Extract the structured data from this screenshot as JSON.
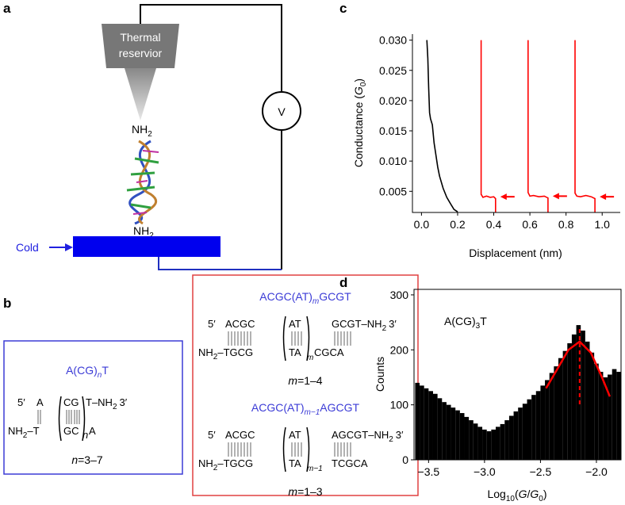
{
  "panel_labels": {
    "a": "a",
    "b": "b",
    "c": "c",
    "d": "d"
  },
  "diagram_a": {
    "reservoir": [
      "Thermal",
      "reservior"
    ],
    "amine_top": [
      "NH",
      "2"
    ],
    "amine_bottom": [
      "NH",
      "2"
    ],
    "voltmeter": "V",
    "cold": "Cold"
  },
  "diagram_b": {
    "blue": {
      "title": [
        "A(CG)",
        "n",
        "T"
      ],
      "top": [
        "5′",
        "A",
        "CG",
        "T–NH",
        "2",
        "3′"
      ],
      "bottom": [
        "NH",
        "2",
        "–T",
        "GC",
        "n",
        "A"
      ],
      "range": [
        "n",
        "=3–7"
      ]
    },
    "red1": {
      "title": [
        "ACGC(AT)",
        "m",
        "GCGT"
      ],
      "top": [
        "5′",
        "ACGC",
        "AT",
        "GCGT–NH",
        "2",
        "3′"
      ],
      "bottom": [
        "NH",
        "2",
        "–TGCG",
        "TA",
        "m",
        "CGCA"
      ],
      "range": [
        "m",
        "=1–4"
      ]
    },
    "red2": {
      "title": [
        "ACGC(AT)",
        "m−1",
        "AGCGT"
      ],
      "top": [
        "5′",
        "ACGC",
        "AT",
        "AGCGT–NH",
        "2",
        "3′"
      ],
      "bottom": [
        "NH",
        "2",
        "–TGCG",
        "TA",
        "m−1",
        "TCGCA"
      ],
      "range": [
        "m",
        "=1–3"
      ]
    }
  },
  "chart_data": [
    {
      "type": "line",
      "x_label": "Displacement (nm)",
      "y_label": [
        "Conductance (",
        "G",
        "0",
        ")"
      ],
      "xlim": [
        -0.05,
        1.1
      ],
      "ylim": [
        0.0015,
        0.031
      ],
      "xticks": [
        {
          "value": 0,
          "label": "0.0"
        },
        0.2,
        0.4,
        0.6,
        0.8,
        {
          "value": 1,
          "label": "1.0"
        }
      ],
      "yticks": [
        0.005,
        {
          "value": 0.01,
          "label": "0.010"
        },
        0.015,
        {
          "value": 0.02,
          "label": "0.020"
        },
        0.025,
        {
          "value": 0.03,
          "label": "0.030"
        }
      ],
      "series": [
        {
          "color": "#000000",
          "x": [
            0.03,
            0.035,
            0.04,
            0.045,
            0.05,
            0.06,
            0.07,
            0.08,
            0.09,
            0.1,
            0.12,
            0.14,
            0.16,
            0.18,
            0.2
          ],
          "values": [
            0.03,
            0.027,
            0.022,
            0.018,
            0.017,
            0.016,
            0.013,
            0.011,
            0.009,
            0.0075,
            0.0055,
            0.004,
            0.003,
            0.002,
            0.0016
          ]
        },
        {
          "color": "#ff0000",
          "x": [
            0.33,
            0.33,
            0.34,
            0.36,
            0.38,
            0.4,
            0.41,
            0.41
          ],
          "values": [
            0.03,
            0.0045,
            0.004,
            0.0042,
            0.004,
            0.0041,
            0.0038,
            0.0015
          ]
        },
        {
          "color": "#ff0000",
          "x": [
            0.59,
            0.59,
            0.6,
            0.62,
            0.65,
            0.68,
            0.7,
            0.7
          ],
          "values": [
            0.03,
            0.0048,
            0.0042,
            0.0043,
            0.0041,
            0.0042,
            0.0039,
            0.0015
          ]
        },
        {
          "color": "#ff0000",
          "x": [
            0.85,
            0.85,
            0.86,
            0.88,
            0.91,
            0.94,
            0.96,
            0.96
          ],
          "values": [
            0.03,
            0.0047,
            0.0042,
            0.0041,
            0.0043,
            0.0041,
            0.0038,
            0.0015
          ]
        }
      ]
    },
    {
      "type": "histogram",
      "x_label": [
        "Log",
        "10",
        "(",
        "G",
        "/",
        "G",
        "0",
        ")"
      ],
      "y_label": "Counts",
      "annotation": [
        "A(CG)",
        "3",
        "T"
      ],
      "xlim": [
        -3.63,
        -1.78
      ],
      "ylim": [
        0,
        310
      ],
      "xticks": [
        {
          "value": -3.5,
          "label": "−3.5"
        },
        {
          "value": -3,
          "label": "−3.0"
        },
        {
          "value": -2.5,
          "label": "−2.5"
        },
        {
          "value": -2,
          "label": "−2.0"
        }
      ],
      "yticks": [
        0,
        100,
        200,
        300
      ],
      "bins": [
        -3.62,
        -3.58,
        -3.54,
        -3.5,
        -3.46,
        -3.42,
        -3.38,
        -3.34,
        -3.3,
        -3.26,
        -3.22,
        -3.18,
        -3.14,
        -3.1,
        -3.06,
        -3.02,
        -2.98,
        -2.94,
        -2.9,
        -2.86,
        -2.82,
        -2.78,
        -2.74,
        -2.7,
        -2.66,
        -2.62,
        -2.58,
        -2.54,
        -2.5,
        -2.46,
        -2.42,
        -2.38,
        -2.34,
        -2.3,
        -2.26,
        -2.22,
        -2.18,
        -2.14,
        -2.1,
        -2.06,
        -2.02,
        -1.98,
        -1.94,
        -1.9,
        -1.86,
        -1.82,
        -1.78
      ],
      "counts": [
        140,
        135,
        130,
        125,
        120,
        112,
        105,
        100,
        95,
        90,
        85,
        78,
        72,
        66,
        60,
        55,
        52,
        55,
        60,
        65,
        72,
        80,
        88,
        95,
        102,
        110,
        118,
        125,
        135,
        145,
        158,
        170,
        185,
        198,
        212,
        228,
        245,
        235,
        215,
        195,
        175,
        160,
        150,
        155,
        165,
        160
      ],
      "color": "#000000",
      "fit": {
        "color": "#ff0000",
        "x": [
          -2.45,
          -2.35,
          -2.25,
          -2.15,
          -2.05,
          -1.95,
          -1.88
        ],
        "values": [
          130,
          165,
          200,
          215,
          195,
          150,
          115
        ]
      },
      "peak": -2.15
    }
  ]
}
